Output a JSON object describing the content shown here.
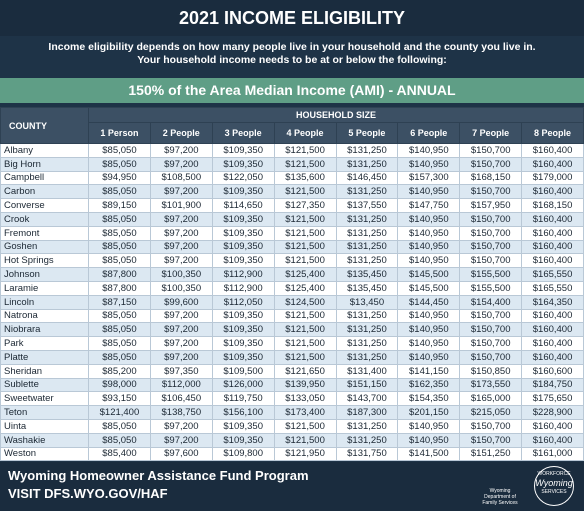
{
  "header": {
    "title": "2021 INCOME ELIGIBILITY",
    "subtitle_lines": [
      "Income eligibility depends on how many people live in your household and the county you live in.",
      "Your household income needs to be at or below the following:"
    ]
  },
  "banner": "150% of the Area Median Income (AMI) - ANNUAL",
  "table": {
    "county_header": "COUNTY",
    "group_header": "HOUSEHOLD SIZE",
    "columns": [
      "1 Person",
      "2 People",
      "3 People",
      "4 People",
      "5 People",
      "6 People",
      "7 People",
      "8 People"
    ],
    "rows": [
      [
        "Albany",
        "$85,050",
        "$97,200",
        "$109,350",
        "$121,500",
        "$131,250",
        "$140,950",
        "$150,700",
        "$160,400"
      ],
      [
        "Big Horn",
        "$85,050",
        "$97,200",
        "$109,350",
        "$121,500",
        "$131,250",
        "$140,950",
        "$150,700",
        "$160,400"
      ],
      [
        "Campbell",
        "$94,950",
        "$108,500",
        "$122,050",
        "$135,600",
        "$146,450",
        "$157,300",
        "$168,150",
        "$179,000"
      ],
      [
        "Carbon",
        "$85,050",
        "$97,200",
        "$109,350",
        "$121,500",
        "$131,250",
        "$140,950",
        "$150,700",
        "$160,400"
      ],
      [
        "Converse",
        "$89,150",
        "$101,900",
        "$114,650",
        "$127,350",
        "$137,550",
        "$147,750",
        "$157,950",
        "$168,150"
      ],
      [
        "Crook",
        "$85,050",
        "$97,200",
        "$109,350",
        "$121,500",
        "$131,250",
        "$140,950",
        "$150,700",
        "$160,400"
      ],
      [
        "Fremont",
        "$85,050",
        "$97,200",
        "$109,350",
        "$121,500",
        "$131,250",
        "$140,950",
        "$150,700",
        "$160,400"
      ],
      [
        "Goshen",
        "$85,050",
        "$97,200",
        "$109,350",
        "$121,500",
        "$131,250",
        "$140,950",
        "$150,700",
        "$160,400"
      ],
      [
        "Hot Springs",
        "$85,050",
        "$97,200",
        "$109,350",
        "$121,500",
        "$131,250",
        "$140,950",
        "$150,700",
        "$160,400"
      ],
      [
        "Johnson",
        "$87,800",
        "$100,350",
        "$112,900",
        "$125,400",
        "$135,450",
        "$145,500",
        "$155,500",
        "$165,550"
      ],
      [
        "Laramie",
        "$87,800",
        "$100,350",
        "$112,900",
        "$125,400",
        "$135,450",
        "$145,500",
        "$155,500",
        "$165,550"
      ],
      [
        "Lincoln",
        "$87,150",
        "$99,600",
        "$112,050",
        "$124,500",
        "$13,450",
        "$144,450",
        "$154,400",
        "$164,350"
      ],
      [
        "Natrona",
        "$85,050",
        "$97,200",
        "$109,350",
        "$121,500",
        "$131,250",
        "$140,950",
        "$150,700",
        "$160,400"
      ],
      [
        "Niobrara",
        "$85,050",
        "$97,200",
        "$109,350",
        "$121,500",
        "$131,250",
        "$140,950",
        "$150,700",
        "$160,400"
      ],
      [
        "Park",
        "$85,050",
        "$97,200",
        "$109,350",
        "$121,500",
        "$131,250",
        "$140,950",
        "$150,700",
        "$160,400"
      ],
      [
        "Platte",
        "$85,050",
        "$97,200",
        "$109,350",
        "$121,500",
        "$131,250",
        "$140,950",
        "$150,700",
        "$160,400"
      ],
      [
        "Sheridan",
        "$85,200",
        "$97,350",
        "$109,500",
        "$121,650",
        "$131,400",
        "$141,150",
        "$150,850",
        "$160,600"
      ],
      [
        "Sublette",
        "$98,000",
        "$112,000",
        "$126,000",
        "$139,950",
        "$151,150",
        "$162,350",
        "$173,550",
        "$184,750"
      ],
      [
        "Sweetwater",
        "$93,150",
        "$106,450",
        "$119,750",
        "$133,050",
        "$143,700",
        "$154,350",
        "$165,000",
        "$175,650"
      ],
      [
        "Teton",
        "$121,400",
        "$138,750",
        "$156,100",
        "$173,400",
        "$187,300",
        "$201,150",
        "$215,050",
        "$228,900"
      ],
      [
        "Uinta",
        "$85,050",
        "$97,200",
        "$109,350",
        "$121,500",
        "$131,250",
        "$140,950",
        "$150,700",
        "$160,400"
      ],
      [
        "Washakie",
        "$85,050",
        "$97,200",
        "$109,350",
        "$121,500",
        "$131,250",
        "$140,950",
        "$150,700",
        "$160,400"
      ],
      [
        "Weston",
        "$85,400",
        "$97,600",
        "$109,800",
        "$121,950",
        "$131,750",
        "$141,500",
        "$151,250",
        "$161,000"
      ]
    ]
  },
  "footer": {
    "program": "Wyoming Homeowner Assistance Fund Program",
    "url": "VISIT DFS.WYO.GOV/HAF",
    "logo_left": "Wyoming Department of Family Services",
    "logo_right": [
      "WORKFORCE",
      "Wyoming",
      "SERVICES"
    ]
  }
}
